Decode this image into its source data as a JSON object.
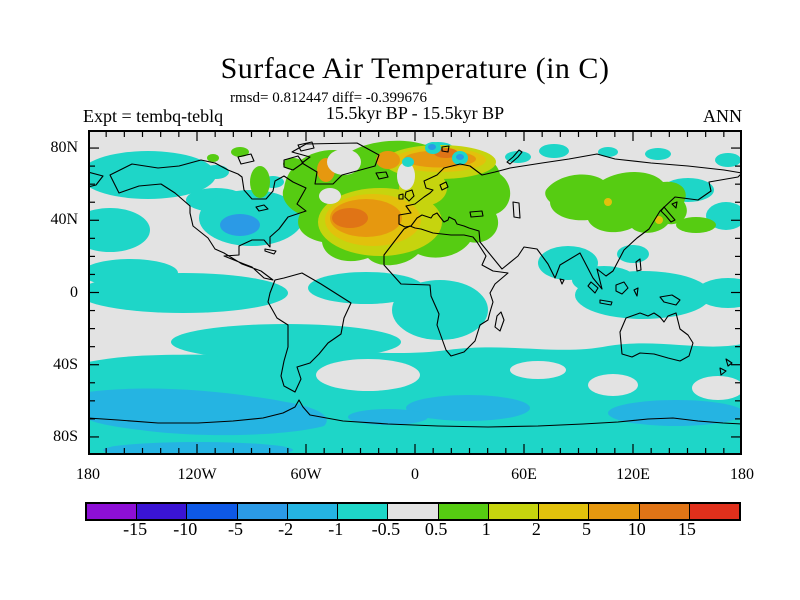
{
  "title": "Surface Air Temperature (in C)",
  "stats_line": "rmsd= 0.812447 diff= -0.399676",
  "difference_label": "15.5kyr BP - 15.5kyr BP",
  "experiment_label": "Expt = tembq-teblq",
  "season_label": "ANN",
  "axes": {
    "x_tick_labels": [
      "180",
      "120W",
      "60W",
      "0",
      "60E",
      "120E",
      "180"
    ],
    "x_tick_lons": [
      -180,
      -120,
      -60,
      0,
      60,
      120,
      180
    ],
    "y_tick_labels": [
      "80N",
      "40N",
      "0",
      "40S",
      "80S"
    ],
    "y_tick_lats": [
      80,
      40,
      0,
      -40,
      -80
    ]
  },
  "colorbar": {
    "boundary_labels": [
      "-15",
      "-10",
      "-5",
      "-2",
      "-1",
      "-0.5",
      "0.5",
      "1",
      "2",
      "5",
      "10",
      "15"
    ],
    "segment_colors": [
      "#8d0fd6",
      "#3a14d4",
      "#0e59e6",
      "#2b9ae6",
      "#25b4e2",
      "#1ed6c8",
      "#e3e3e3",
      "#56cc12",
      "#c6d40e",
      "#e2c10c",
      "#e6980f",
      "#e07416",
      "#e0301c"
    ]
  },
  "map": {
    "colors": {
      "gray": "#e3e3e3",
      "tq": "#1ed6c8",
      "b3": "#0e59e6",
      "b4": "#2b9ae6",
      "b5": "#25b4e2",
      "g": "#56cc12",
      "yg": "#c6d40e",
      "gold": "#e2c10c",
      "or": "#e6980f",
      "dor": "#e07416"
    }
  },
  "chart_data": {
    "type": "heatmap",
    "title": "Surface Air Temperature (in C)",
    "subtitle": "15.5kyr BP - 15.5kyr BP",
    "stats": {
      "rmsd": 0.812447,
      "diff": -0.399676
    },
    "experiment": "tembq-teblq",
    "season": "ANN",
    "units": "deg C",
    "projection": "equirectangular world map",
    "x_range_deg_lon": [
      -180,
      180
    ],
    "y_range_deg_lat": [
      -90,
      90
    ],
    "x_tick_labels": [
      "180",
      "120W",
      "60W",
      "0",
      "60E",
      "120E",
      "180"
    ],
    "y_tick_labels": [
      "80N",
      "40N",
      "0",
      "40S",
      "80S"
    ],
    "contour_levels_degC": [
      -15,
      -10,
      -5,
      -2,
      -1,
      -0.5,
      0.5,
      1,
      2,
      5,
      10,
      15
    ],
    "legend_position": "bottom horizontal colorbar",
    "notable_regions": [
      {
        "region": "North Atlantic 30-55N, 50W-10W",
        "anomaly_degC": "+2 to +10 (warm core)"
      },
      {
        "region": "Greenland Sea / Barents Sea",
        "anomaly_degC": "+2 to +10"
      },
      {
        "region": "NW Europe, Iceland, S Greenland fringe",
        "anomaly_degC": "+0.5 to +2"
      },
      {
        "region": "Eastern Siberia 30-65N",
        "anomaly_degC": "+0.5 to +1 with small +2 spots"
      },
      {
        "region": "Central North America",
        "anomaly_degC": "-1 to -2"
      },
      {
        "region": "Southern Ocean 50-70S",
        "anomaly_degC": "-0.5 to -2"
      },
      {
        "region": "Tropical oceans (patchy bands)",
        "anomaly_degC": "-0.5 to -1"
      },
      {
        "region": "Most land interiors",
        "anomaly_degC": "-0.5 to +0.5 (near zero)"
      }
    ]
  }
}
